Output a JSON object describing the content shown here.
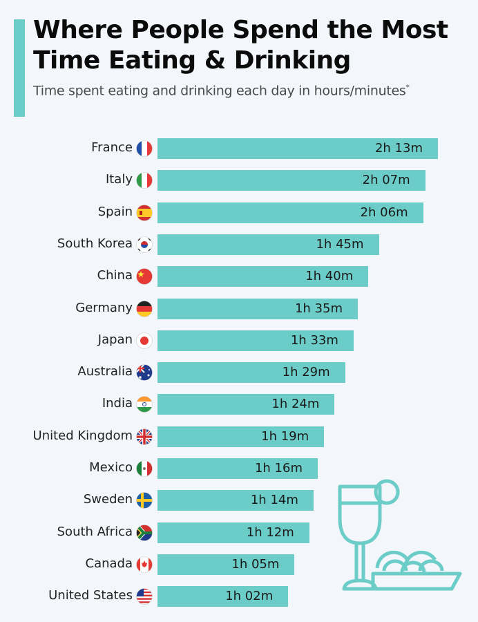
{
  "title": "Where People Spend the Most Time Eating & Drinking",
  "subtitle": "Time spent eating and drinking each day in hours/minutes",
  "subtitle_mark": "*",
  "colors": {
    "bar": "#6ccdc8",
    "accent": "#6ccdc8",
    "background": "#f3f6fa"
  },
  "illustration": "drink-glass-and-food-plate-icon",
  "chart_data": {
    "type": "bar",
    "orientation": "horizontal",
    "title": "Where People Spend the Most Time Eating & Drinking",
    "subtitle": "Time spent eating and drinking each day in hours/minutes",
    "unit": "minutes",
    "categories": [
      "France",
      "Italy",
      "Spain",
      "South Korea",
      "China",
      "Germany",
      "Japan",
      "Australia",
      "India",
      "United Kingdom",
      "Mexico",
      "Sweden",
      "South Africa",
      "Canada",
      "United States"
    ],
    "values": [
      133,
      127,
      126,
      105,
      100,
      95,
      93,
      89,
      84,
      79,
      76,
      74,
      72,
      65,
      62
    ],
    "data_labels": [
      "2h 13m",
      "2h 07m",
      "2h 06m",
      "1h 45m",
      "1h 40m",
      "1h 35m",
      "1h 33m",
      "1h 29m",
      "1h 24m",
      "1h 19m",
      "1h 16m",
      "1h 14m",
      "1h 12m",
      "1h 05m",
      "1h 02m"
    ],
    "flags": [
      "fr",
      "it",
      "es",
      "kr",
      "cn",
      "de",
      "jp",
      "au",
      "in",
      "gb",
      "mx",
      "se",
      "za",
      "ca",
      "us"
    ],
    "grid": false,
    "legend": "none"
  }
}
